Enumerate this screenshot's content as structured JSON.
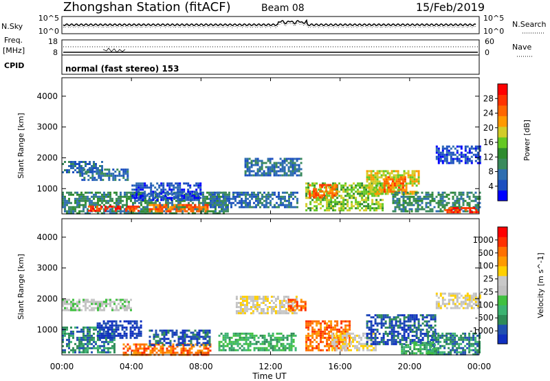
{
  "header": {
    "station": "Zhongshan Station (fitACF)",
    "beam": "Beam 08",
    "date": "15/Feb/2019"
  },
  "noise_panel": {
    "left_label": "N.Sky",
    "right_label": "N.Search",
    "left_ticks": [
      "10^5",
      "10^0"
    ],
    "right_ticks": [
      "10^5",
      "10^0"
    ]
  },
  "freq_panel": {
    "left_label_1": "Freq.",
    "left_label_2": "[MHz]",
    "right_label": "Nave",
    "left_ticks": [
      "18",
      "8"
    ],
    "right_ticks": [
      "60",
      "0"
    ]
  },
  "cpid_panel": {
    "label": "CPID",
    "mode_text": "normal (fast stereo) 153"
  },
  "x_axis": {
    "label": "Time UT",
    "ticks": [
      "00:00",
      "04:00",
      "08:00",
      "12:00",
      "16:00",
      "20:00",
      "00:00"
    ]
  },
  "chart_data": [
    {
      "type": "heatmap",
      "title": "",
      "xlabel": "Time UT",
      "ylabel": "Slant Range [km]",
      "x_range_hours": [
        0,
        24
      ],
      "ylim": [
        180,
        4600
      ],
      "y_ticks": [
        1000,
        2000,
        3000,
        4000
      ],
      "colorbar_label": "Power [dB]",
      "colorbar_ticks": [
        "4",
        "8",
        "12",
        "16",
        "20",
        "24",
        "28"
      ],
      "colorbar_colors": [
        "#0000ff",
        "#1c4fc0",
        "#2f6eb0",
        "#3a8a5c",
        "#2e8b2e",
        "#64c822",
        "#d2cc28",
        "#ff9900",
        "#ff6600",
        "#ff3300",
        "#ff0000"
      ],
      "regions": [
        {
          "t0": 0.0,
          "t1": 2.3,
          "r0": 1550,
          "r1": 1900,
          "level": 2
        },
        {
          "t0": 1.0,
          "t1": 3.8,
          "r0": 1300,
          "r1": 1650,
          "level": 2
        },
        {
          "t0": 0.0,
          "t1": 9.5,
          "r0": 200,
          "r1": 900,
          "level": 3
        },
        {
          "t0": 1.5,
          "t1": 4.5,
          "r0": 250,
          "r1": 450,
          "level": 9
        },
        {
          "t0": 5.0,
          "t1": 8.5,
          "r0": 250,
          "r1": 500,
          "level": 8
        },
        {
          "t0": 4.0,
          "t1": 8.0,
          "r0": 600,
          "r1": 1200,
          "level": 1
        },
        {
          "t0": 8.5,
          "t1": 13.5,
          "r0": 400,
          "r1": 900,
          "level": 2
        },
        {
          "t0": 10.5,
          "t1": 13.8,
          "r0": 1400,
          "r1": 2000,
          "level": 2
        },
        {
          "t0": 14.0,
          "t1": 18.5,
          "r0": 300,
          "r1": 1200,
          "level": 5
        },
        {
          "t0": 14.2,
          "t1": 15.8,
          "r0": 700,
          "r1": 1150,
          "level": 8
        },
        {
          "t0": 17.5,
          "t1": 20.5,
          "r0": 800,
          "r1": 1600,
          "level": 6
        },
        {
          "t0": 18.5,
          "t1": 19.8,
          "r0": 900,
          "r1": 1400,
          "level": 8
        },
        {
          "t0": 19.0,
          "t1": 24.0,
          "r0": 250,
          "r1": 900,
          "level": 3
        },
        {
          "t0": 21.5,
          "t1": 24.0,
          "r0": 1800,
          "r1": 2400,
          "level": 1
        },
        {
          "t0": 22.0,
          "t1": 24.0,
          "r0": 200,
          "r1": 400,
          "level": 9
        }
      ]
    },
    {
      "type": "heatmap",
      "title": "",
      "xlabel": "Time UT",
      "ylabel": "Slant Range [km]",
      "x_range_hours": [
        0,
        24
      ],
      "ylim": [
        180,
        4600
      ],
      "y_ticks": [
        1000,
        2000,
        3000,
        4000
      ],
      "colorbar_label": "Velocity [m s^-1]",
      "colorbar_ticks": [
        "1000",
        "500",
        "100",
        "25",
        "-25",
        "-100",
        "-500",
        "-1000"
      ],
      "colorbar_colors": [
        "#1030c0",
        "#2050b0",
        "#2e8b57",
        "#3cb371",
        "#40c040",
        "#c0c0c0",
        "#c8c8c8",
        "#ffd000",
        "#ff9a00",
        "#ff7000",
        "#ff3000",
        "#ff0000"
      ],
      "regions": [
        {
          "t0": 0.0,
          "t1": 4.0,
          "r0": 1650,
          "r1": 2000,
          "level": 5
        },
        {
          "t0": 0.0,
          "t1": 3.0,
          "r0": 250,
          "r1": 1100,
          "level": 2
        },
        {
          "t0": 2.0,
          "t1": 4.5,
          "r0": 700,
          "r1": 1300,
          "level": 0
        },
        {
          "t0": 3.5,
          "t1": 8.5,
          "r0": 200,
          "r1": 550,
          "level": 9
        },
        {
          "t0": 5.0,
          "t1": 8.5,
          "r0": 500,
          "r1": 1000,
          "level": 1
        },
        {
          "t0": 9.0,
          "t1": 13.5,
          "r0": 300,
          "r1": 900,
          "level": 3
        },
        {
          "t0": 10.0,
          "t1": 13.5,
          "r0": 1500,
          "r1": 2100,
          "level": 6
        },
        {
          "t0": 13.0,
          "t1": 14.0,
          "r0": 1600,
          "r1": 2000,
          "level": 9
        },
        {
          "t0": 14.0,
          "t1": 16.5,
          "r0": 300,
          "r1": 1300,
          "level": 9
        },
        {
          "t0": 15.5,
          "t1": 18.0,
          "r0": 300,
          "r1": 900,
          "level": 6
        },
        {
          "t0": 17.5,
          "t1": 21.5,
          "r0": 500,
          "r1": 1500,
          "level": 1
        },
        {
          "t0": 21.0,
          "t1": 24.0,
          "r0": 200,
          "r1": 900,
          "level": 2
        },
        {
          "t0": 21.5,
          "t1": 24.0,
          "r0": 1700,
          "r1": 2200,
          "level": 6
        },
        {
          "t0": 19.5,
          "t1": 21.5,
          "r0": 200,
          "r1": 600,
          "level": 3
        }
      ]
    }
  ]
}
